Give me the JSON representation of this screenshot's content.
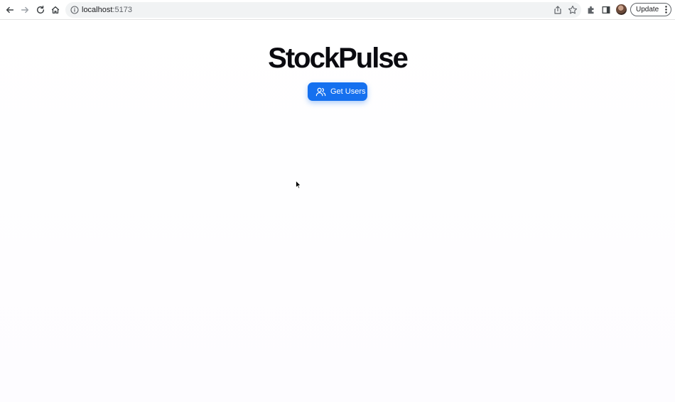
{
  "browser": {
    "url_host": "localhost",
    "url_port": ":5173",
    "update_label": "Update",
    "accent": "#1570ef"
  },
  "page": {
    "title": "StockPulse",
    "get_users_label": "Get Users"
  }
}
